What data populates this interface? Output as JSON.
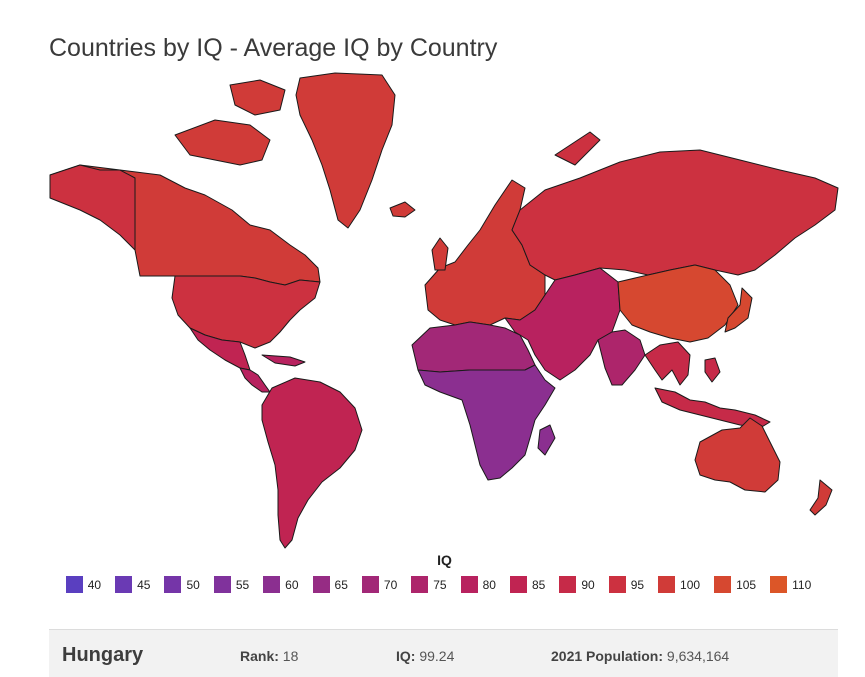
{
  "title": "Countries by IQ - Average IQ by Country",
  "legend": {
    "title": "IQ",
    "items": [
      {
        "label": "40",
        "color": "#5a3fc0"
      },
      {
        "label": "45",
        "color": "#6a3ab4"
      },
      {
        "label": "50",
        "color": "#7535a8"
      },
      {
        "label": "55",
        "color": "#80329c"
      },
      {
        "label": "60",
        "color": "#8b2f90"
      },
      {
        "label": "65",
        "color": "#962c84"
      },
      {
        "label": "70",
        "color": "#a22877"
      },
      {
        "label": "75",
        "color": "#ad256b"
      },
      {
        "label": "80",
        "color": "#b8225f"
      },
      {
        "label": "85",
        "color": "#c02452"
      },
      {
        "label": "90",
        "color": "#c62a48"
      },
      {
        "label": "95",
        "color": "#cc3140"
      },
      {
        "label": "100",
        "color": "#d03b38"
      },
      {
        "label": "105",
        "color": "#d64830"
      },
      {
        "label": "110",
        "color": "#dc5628"
      }
    ]
  },
  "selected": {
    "country": "Hungary",
    "rank_label": "Rank:",
    "rank": "18",
    "iq_label": "IQ:",
    "iq": "99.24",
    "population_label": "2021 Population:",
    "population": "9,634,164"
  },
  "regions": [
    {
      "name": "canada",
      "color": "#d03b38"
    },
    {
      "name": "usa",
      "color": "#cc3140"
    },
    {
      "name": "greenland",
      "color": "#d03b38"
    },
    {
      "name": "mexico",
      "color": "#c02452"
    },
    {
      "name": "central-america",
      "color": "#b8225f"
    },
    {
      "name": "south-america",
      "color": "#c02452"
    },
    {
      "name": "europe",
      "color": "#d03b38"
    },
    {
      "name": "russia",
      "color": "#cc3140"
    },
    {
      "name": "middle-east",
      "color": "#b8225f"
    },
    {
      "name": "north-africa",
      "color": "#a22877"
    },
    {
      "name": "sub-saharan-africa",
      "color": "#8b2f90"
    },
    {
      "name": "india",
      "color": "#ad256b"
    },
    {
      "name": "china",
      "color": "#d64830"
    },
    {
      "name": "southeast-asia",
      "color": "#c62a48"
    },
    {
      "name": "japan",
      "color": "#d64830"
    },
    {
      "name": "australia",
      "color": "#d03b38"
    },
    {
      "name": "new-zealand",
      "color": "#d03b38"
    }
  ]
}
